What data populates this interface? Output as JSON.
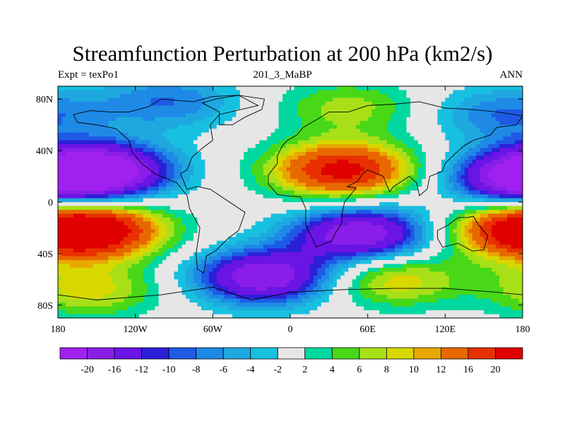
{
  "chart_data": {
    "type": "heatmap",
    "title": "Streamfunction Perturbation at 200 hPa (km2/s)",
    "subtitle_left": "Expt = texPo1",
    "subtitle_center": "201_3_MaBP",
    "subtitle_right": "ANN",
    "xlim": [
      -180,
      180
    ],
    "ylim": [
      -90,
      90
    ],
    "x_ticks": [
      {
        "value": -180,
        "label": "180"
      },
      {
        "value": -120,
        "label": "120W"
      },
      {
        "value": -60,
        "label": "60W"
      },
      {
        "value": 0,
        "label": "0"
      },
      {
        "value": 60,
        "label": "60E"
      },
      {
        "value": 120,
        "label": "120E"
      },
      {
        "value": 180,
        "label": "180"
      }
    ],
    "y_ticks": [
      {
        "value": 80,
        "label": "80N"
      },
      {
        "value": 40,
        "label": "40N"
      },
      {
        "value": 0,
        "label": "0"
      },
      {
        "value": -40,
        "label": "40S"
      },
      {
        "value": -80,
        "label": "80S"
      }
    ],
    "colorbar": {
      "levels": [
        "-20",
        "-16",
        "-12",
        "-10",
        "-8",
        "-6",
        "-4",
        "-2",
        "2",
        "4",
        "6",
        "8",
        "10",
        "12",
        "16",
        "20"
      ],
      "colors": [
        "#a020f0",
        "#8a1ee8",
        "#6b14e6",
        "#2d1fd8",
        "#1e5ae6",
        "#1e8ae6",
        "#1fa8e0",
        "#18c0e0",
        "#e6e6e6",
        "#00d8a0",
        "#48d818",
        "#a8e018",
        "#d8d800",
        "#e8a800",
        "#e86800",
        "#e83000",
        "#e00000"
      ]
    },
    "field_extrema": [
      {
        "lon": -145,
        "lat": 25,
        "value": -20
      },
      {
        "lon": 40,
        "lat": 25,
        "value": 22
      },
      {
        "lon": -150,
        "lat": -22,
        "value": 20
      },
      {
        "lon": 55,
        "lat": -25,
        "value": -20
      },
      {
        "lon": -20,
        "lat": -58,
        "value": -20
      },
      {
        "lon": 180,
        "lat": 18,
        "value": -20
      },
      {
        "lon": 175,
        "lat": -22,
        "value": 16
      },
      {
        "lon": 80,
        "lat": -60,
        "value": 10
      },
      {
        "lon": -155,
        "lat": -68,
        "value": 9
      },
      {
        "lon": 45,
        "lat": 73,
        "value": 7
      },
      {
        "lon": -95,
        "lat": 78,
        "value": -8
      },
      {
        "lon": 165,
        "lat": 68,
        "value": -8
      }
    ]
  }
}
